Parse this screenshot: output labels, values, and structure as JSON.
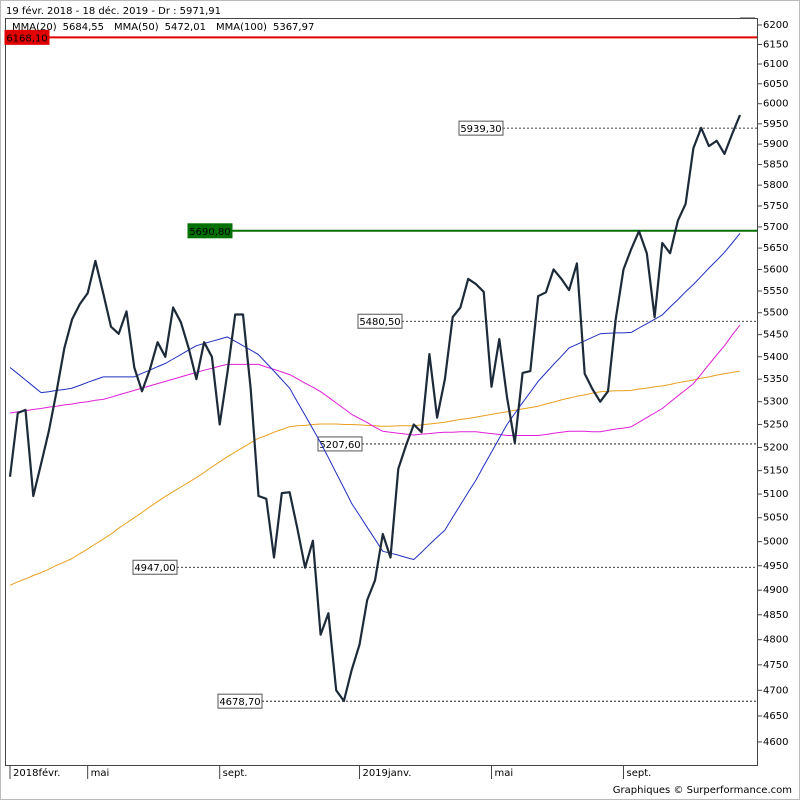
{
  "chart_data": {
    "type": "line",
    "title": "19 févr. 2018 - 18 déc. 2019 - Dr : 5971,91",
    "footer": "Graphiques © Surperformance.com",
    "log_scale": true,
    "categories": [
      "2018févr.",
      null,
      null,
      null,
      null,
      null,
      null,
      null,
      null,
      null,
      "mai",
      null,
      null,
      null,
      null,
      null,
      null,
      null,
      null,
      null,
      null,
      null,
      null,
      null,
      null,
      null,
      null,
      "sept.",
      null,
      null,
      null,
      null,
      null,
      null,
      null,
      null,
      null,
      null,
      null,
      null,
      null,
      null,
      null,
      null,
      null,
      "2019janv.",
      null,
      null,
      null,
      null,
      null,
      null,
      null,
      null,
      null,
      null,
      null,
      null,
      null,
      null,
      null,
      null,
      "mai",
      null,
      null,
      null,
      null,
      null,
      null,
      null,
      null,
      null,
      null,
      null,
      null,
      null,
      null,
      null,
      null,
      "sept.",
      null,
      null,
      null,
      null,
      null,
      null,
      null,
      null,
      null,
      null,
      null,
      null,
      null,
      null,
      null
    ],
    "series": [
      {
        "color": "#e8a020",
        "name": "MMA(100)",
        "legend_value": "5367,97",
        "values": [
          4910,
          4917,
          4923,
          4930,
          4936,
          4943,
          4951,
          4958,
          4965,
          4975,
          4985,
          4995,
          5005,
          5016,
          5028,
          5039,
          5050,
          5061,
          5073,
          5084,
          5095,
          5105,
          5115,
          5125,
          5135,
          5146,
          5158,
          5169,
          5180,
          5190,
          5200,
          5210,
          5220,
          5226,
          5233,
          5239,
          5245,
          5247,
          5248,
          5250,
          5251,
          5251,
          5251,
          5250,
          5250,
          5249,
          5248,
          5247,
          5246,
          5246,
          5247,
          5247,
          5247,
          5249,
          5251,
          5253,
          5255,
          5258,
          5261,
          5263,
          5266,
          5269,
          5272,
          5275,
          5278,
          5281,
          5284,
          5287,
          5290,
          5295,
          5299,
          5304,
          5308,
          5312,
          5315,
          5319,
          5322,
          5323,
          5324,
          5324,
          5325,
          5328,
          5330,
          5333,
          5335,
          5338,
          5342,
          5345,
          5348,
          5352,
          5355,
          5359,
          5362,
          5365,
          5368
        ]
      },
      {
        "color": "#e020d8",
        "name": "MMA(50)",
        "legend_value": "5472,01",
        "values": [
          5275,
          5278,
          5280,
          5283,
          5285,
          5288,
          5290,
          5293,
          5295,
          5298,
          5300,
          5303,
          5305,
          5310,
          5315,
          5320,
          5325,
          5330,
          5335,
          5340,
          5345,
          5350,
          5355,
          5360,
          5365,
          5370,
          5374,
          5379,
          5383,
          5383,
          5383,
          5383,
          5383,
          5377,
          5372,
          5366,
          5360,
          5351,
          5341,
          5332,
          5322,
          5310,
          5297,
          5285,
          5272,
          5263,
          5254,
          5244,
          5235,
          5233,
          5231,
          5229,
          5227,
          5229,
          5230,
          5232,
          5233,
          5233,
          5234,
          5234,
          5234,
          5232,
          5230,
          5228,
          5226,
          5226,
          5226,
          5226,
          5226,
          5228,
          5231,
          5233,
          5235,
          5235,
          5235,
          5234,
          5234,
          5237,
          5240,
          5242,
          5245,
          5255,
          5265,
          5275,
          5285,
          5299,
          5313,
          5326,
          5340,
          5361,
          5383,
          5404,
          5425,
          5449,
          5472
        ]
      },
      {
        "color": "#2030c0",
        "name": "MMA(20)",
        "legend_value": "5684,55",
        "values": [
          5376,
          5362,
          5348,
          5334,
          5320,
          5322,
          5325,
          5327,
          5330,
          5336,
          5343,
          5349,
          5355,
          5355,
          5355,
          5355,
          5355,
          5363,
          5370,
          5378,
          5385,
          5395,
          5405,
          5415,
          5425,
          5430,
          5435,
          5440,
          5445,
          5435,
          5425,
          5415,
          5405,
          5386,
          5368,
          5349,
          5330,
          5300,
          5270,
          5240,
          5210,
          5178,
          5145,
          5113,
          5080,
          5055,
          5030,
          5005,
          4980,
          4976,
          4972,
          4967,
          4963,
          4978,
          4994,
          5009,
          5024,
          5051,
          5077,
          5104,
          5130,
          5160,
          5190,
          5220,
          5250,
          5274,
          5298,
          5321,
          5345,
          5364,
          5383,
          5401,
          5420,
          5428,
          5436,
          5444,
          5452,
          5453,
          5454,
          5454,
          5455,
          5465,
          5475,
          5485,
          5495,
          5513,
          5530,
          5548,
          5565,
          5584,
          5603,
          5621,
          5640,
          5662,
          5685
        ]
      },
      {
        "color": "#1c2a3a",
        "values": [
          5137,
          5275,
          5282,
          5096,
          5165,
          5235,
          5323,
          5420,
          5485,
          5520,
          5545,
          5620,
          5545,
          5468,
          5452,
          5503,
          5376,
          5323,
          5371,
          5433,
          5400,
          5512,
          5478,
          5420,
          5350,
          5433,
          5400,
          5250,
          5364,
          5496,
          5496,
          5328,
          5096,
          5090,
          4967,
          5102,
          5104,
          5028,
          4946,
          5002,
          4810,
          4853,
          4700,
          4679,
          4740,
          4790,
          4880,
          4920,
          5016,
          4967,
          5154,
          5205,
          5250,
          5233,
          5406,
          5265,
          5350,
          5490,
          5512,
          5578,
          5566,
          5548,
          5333,
          5440,
          5310,
          5210,
          5364,
          5368,
          5538,
          5547,
          5600,
          5578,
          5552,
          5614,
          5362,
          5328,
          5300,
          5323,
          5485,
          5600,
          5648,
          5690,
          5638,
          5490,
          5662,
          5638,
          5715,
          5755,
          5890,
          5940,
          5895,
          5908,
          5876,
          5925,
          5972
        ]
      }
    ],
    "levels": [
      {
        "value": 6168.1,
        "label": "6168,10",
        "color": "#e00000",
        "style": "solid"
      },
      {
        "value": 5939.3,
        "label": "5939,30",
        "color": "#000000",
        "style": "dashed"
      },
      {
        "value": 5690.8,
        "label": "5690,80",
        "color": "#007000",
        "style": "solid"
      },
      {
        "value": 5480.5,
        "label": "5480,50",
        "color": "#000000",
        "style": "dashed"
      },
      {
        "value": 5207.6,
        "label": "5207,60",
        "color": "#000000",
        "style": "dashed"
      },
      {
        "value": 4947,
        "label": "4947,00",
        "color": "#000000",
        "style": "dashed"
      },
      {
        "value": 4678.7,
        "label": "4678,70",
        "color": "#000000",
        "style": "dashed"
      }
    ],
    "ylim": [
      4556,
      6218
    ],
    "yticks": [
      4600,
      4650,
      4700,
      4750,
      4800,
      4850,
      4900,
      4950,
      5000,
      5050,
      5100,
      5150,
      5200,
      5250,
      5300,
      5350,
      5400,
      5450,
      5500,
      5550,
      5600,
      5650,
      5700,
      5750,
      5800,
      5850,
      5900,
      5950,
      6000,
      6050,
      6100,
      6150,
      6200
    ]
  }
}
